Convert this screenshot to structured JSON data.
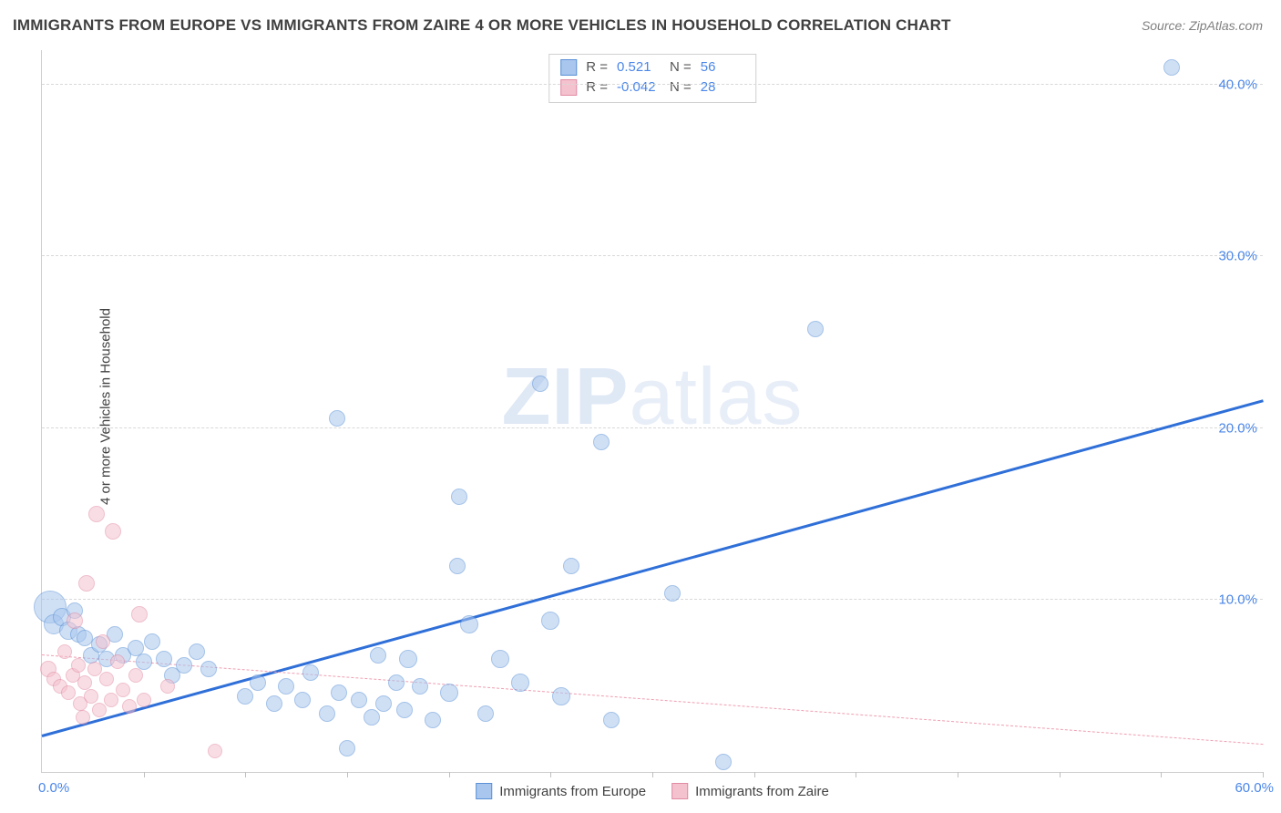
{
  "title": "IMMIGRANTS FROM EUROPE VS IMMIGRANTS FROM ZAIRE 4 OR MORE VEHICLES IN HOUSEHOLD CORRELATION CHART",
  "source": "Source: ZipAtlas.com",
  "y_axis_label": "4 or more Vehicles in Household",
  "watermark_bold": "ZIP",
  "watermark_rest": "atlas",
  "chart": {
    "type": "scatter",
    "xlim": [
      0,
      60
    ],
    "ylim": [
      0,
      42
    ],
    "x_origin_label": "0.0%",
    "x_max_label": "60.0%",
    "x_tick_positions": [
      5,
      10,
      15,
      20,
      25,
      30,
      35,
      40,
      45,
      50,
      55,
      60
    ],
    "y_gridlines": [
      {
        "value": 10,
        "label": "10.0%"
      },
      {
        "value": 20,
        "label": "20.0%"
      },
      {
        "value": 30,
        "label": "30.0%"
      },
      {
        "value": 40,
        "label": "40.0%"
      }
    ],
    "background_color": "#ffffff",
    "grid_color": "#d8d8d8",
    "axis_color": "#cfcfcf",
    "tick_label_color": "#4a86e8",
    "series": [
      {
        "name": "Immigrants from Europe",
        "fill_color": "#a9c7ee",
        "stroke_color": "#5b91d6",
        "fill_opacity": 0.55,
        "marker": "circle",
        "R": 0.521,
        "N": 56,
        "trend": {
          "x1": 0,
          "y1": 2.0,
          "x2": 60,
          "y2": 21.5,
          "style": "solid",
          "width": 3
        },
        "points": [
          {
            "x": 0.4,
            "y": 9.6,
            "r": 18
          },
          {
            "x": 0.6,
            "y": 8.6,
            "r": 11
          },
          {
            "x": 1.0,
            "y": 9.0,
            "r": 10
          },
          {
            "x": 1.3,
            "y": 8.2,
            "r": 10
          },
          {
            "x": 1.6,
            "y": 9.4,
            "r": 9
          },
          {
            "x": 1.8,
            "y": 8.0,
            "r": 9
          },
          {
            "x": 2.1,
            "y": 7.8,
            "r": 9
          },
          {
            "x": 2.4,
            "y": 6.8,
            "r": 9
          },
          {
            "x": 2.8,
            "y": 7.4,
            "r": 9
          },
          {
            "x": 3.2,
            "y": 6.6,
            "r": 9
          },
          {
            "x": 3.6,
            "y": 8.0,
            "r": 9
          },
          {
            "x": 4.0,
            "y": 6.8,
            "r": 9
          },
          {
            "x": 4.6,
            "y": 7.2,
            "r": 9
          },
          {
            "x": 5.0,
            "y": 6.4,
            "r": 9
          },
          {
            "x": 5.4,
            "y": 7.6,
            "r": 9
          },
          {
            "x": 6.0,
            "y": 6.6,
            "r": 9
          },
          {
            "x": 6.4,
            "y": 5.6,
            "r": 9
          },
          {
            "x": 7.0,
            "y": 6.2,
            "r": 9
          },
          {
            "x": 7.6,
            "y": 7.0,
            "r": 9
          },
          {
            "x": 8.2,
            "y": 6.0,
            "r": 9
          },
          {
            "x": 10.0,
            "y": 4.4,
            "r": 9
          },
          {
            "x": 10.6,
            "y": 5.2,
            "r": 9
          },
          {
            "x": 11.4,
            "y": 4.0,
            "r": 9
          },
          {
            "x": 12.0,
            "y": 5.0,
            "r": 9
          },
          {
            "x": 12.8,
            "y": 4.2,
            "r": 9
          },
          {
            "x": 13.2,
            "y": 5.8,
            "r": 9
          },
          {
            "x": 14.0,
            "y": 3.4,
            "r": 9
          },
          {
            "x": 14.6,
            "y": 4.6,
            "r": 9
          },
          {
            "x": 15.0,
            "y": 1.4,
            "r": 9
          },
          {
            "x": 15.6,
            "y": 4.2,
            "r": 9
          },
          {
            "x": 16.2,
            "y": 3.2,
            "r": 9
          },
          {
            "x": 16.5,
            "y": 6.8,
            "r": 9
          },
          {
            "x": 16.8,
            "y": 4.0,
            "r": 9
          },
          {
            "x": 17.4,
            "y": 5.2,
            "r": 9
          },
          {
            "x": 17.8,
            "y": 3.6,
            "r": 9
          },
          {
            "x": 18.0,
            "y": 6.6,
            "r": 10
          },
          {
            "x": 18.6,
            "y": 5.0,
            "r": 9
          },
          {
            "x": 19.2,
            "y": 3.0,
            "r": 9
          },
          {
            "x": 14.5,
            "y": 20.6,
            "r": 9
          },
          {
            "x": 20.0,
            "y": 4.6,
            "r": 10
          },
          {
            "x": 20.4,
            "y": 12.0,
            "r": 9
          },
          {
            "x": 20.5,
            "y": 16.0,
            "r": 9
          },
          {
            "x": 21.0,
            "y": 8.6,
            "r": 10
          },
          {
            "x": 21.8,
            "y": 3.4,
            "r": 9
          },
          {
            "x": 22.5,
            "y": 6.6,
            "r": 10
          },
          {
            "x": 23.5,
            "y": 5.2,
            "r": 10
          },
          {
            "x": 24.5,
            "y": 22.6,
            "r": 9
          },
          {
            "x": 25.0,
            "y": 8.8,
            "r": 10
          },
          {
            "x": 25.5,
            "y": 4.4,
            "r": 10
          },
          {
            "x": 26.0,
            "y": 12.0,
            "r": 9
          },
          {
            "x": 27.5,
            "y": 19.2,
            "r": 9
          },
          {
            "x": 28.0,
            "y": 3.0,
            "r": 9
          },
          {
            "x": 31.0,
            "y": 10.4,
            "r": 9
          },
          {
            "x": 33.5,
            "y": 0.6,
            "r": 9
          },
          {
            "x": 38.0,
            "y": 25.8,
            "r": 9
          },
          {
            "x": 55.5,
            "y": 41.0,
            "r": 9
          }
        ]
      },
      {
        "name": "Immigrants from Zaire",
        "fill_color": "#f4c2cf",
        "stroke_color": "#e28ba4",
        "fill_opacity": 0.55,
        "marker": "circle",
        "R": -0.042,
        "N": 28,
        "trend": {
          "x1": 0,
          "y1": 6.8,
          "x2": 60,
          "y2": 1.6,
          "style": "dashed",
          "width": 1.5
        },
        "points": [
          {
            "x": 0.3,
            "y": 6.0,
            "r": 9
          },
          {
            "x": 0.6,
            "y": 5.4,
            "r": 8
          },
          {
            "x": 0.9,
            "y": 5.0,
            "r": 8
          },
          {
            "x": 1.1,
            "y": 7.0,
            "r": 8
          },
          {
            "x": 1.3,
            "y": 4.6,
            "r": 8
          },
          {
            "x": 1.5,
            "y": 5.6,
            "r": 8
          },
          {
            "x": 1.6,
            "y": 8.8,
            "r": 9
          },
          {
            "x": 1.8,
            "y": 6.2,
            "r": 8
          },
          {
            "x": 1.9,
            "y": 4.0,
            "r": 8
          },
          {
            "x": 2.0,
            "y": 3.2,
            "r": 8
          },
          {
            "x": 2.1,
            "y": 5.2,
            "r": 8
          },
          {
            "x": 2.2,
            "y": 11.0,
            "r": 9
          },
          {
            "x": 2.4,
            "y": 4.4,
            "r": 8
          },
          {
            "x": 2.6,
            "y": 6.0,
            "r": 8
          },
          {
            "x": 2.7,
            "y": 15.0,
            "r": 9
          },
          {
            "x": 2.8,
            "y": 3.6,
            "r": 8
          },
          {
            "x": 3.0,
            "y": 7.6,
            "r": 8
          },
          {
            "x": 3.2,
            "y": 5.4,
            "r": 8
          },
          {
            "x": 3.4,
            "y": 4.2,
            "r": 8
          },
          {
            "x": 3.5,
            "y": 14.0,
            "r": 9
          },
          {
            "x": 3.7,
            "y": 6.4,
            "r": 8
          },
          {
            "x": 4.0,
            "y": 4.8,
            "r": 8
          },
          {
            "x": 4.3,
            "y": 3.8,
            "r": 8
          },
          {
            "x": 4.6,
            "y": 5.6,
            "r": 8
          },
          {
            "x": 4.8,
            "y": 9.2,
            "r": 9
          },
          {
            "x": 5.0,
            "y": 4.2,
            "r": 8
          },
          {
            "x": 6.2,
            "y": 5.0,
            "r": 8
          },
          {
            "x": 8.5,
            "y": 1.2,
            "r": 8
          }
        ]
      }
    ],
    "legend_top": {
      "R_label": "R =",
      "N_label": "N ="
    },
    "legend_bottom": [
      {
        "label": "Immigrants from Europe",
        "fill": "#a9c7ee",
        "stroke": "#5b91d6"
      },
      {
        "label": "Immigrants from Zaire",
        "fill": "#f4c2cf",
        "stroke": "#e28ba4"
      }
    ]
  }
}
